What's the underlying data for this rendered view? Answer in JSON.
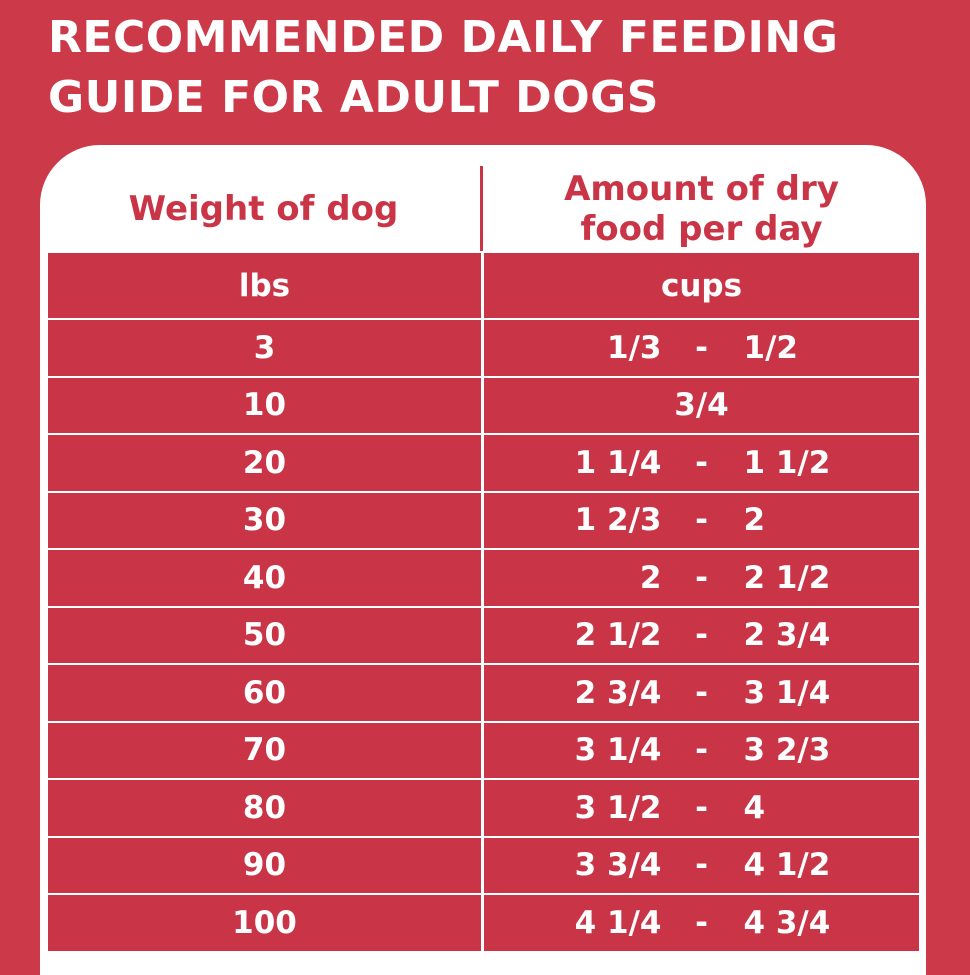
{
  "title": "RECOMMENDED DAILY FEEDING GUIDE FOR ADULT DOGS",
  "colors": {
    "background": "#cc3a4a",
    "table_red": "#c93547",
    "card": "#ffffff"
  },
  "table": {
    "headers": {
      "weight": "Weight of dog",
      "amount": "Amount of dry food per day"
    },
    "units": {
      "weight": "lbs",
      "amount": "cups"
    },
    "rows": [
      {
        "weight": "3",
        "low": "1/3",
        "dash": "-",
        "high": "1/2"
      },
      {
        "weight": "10",
        "single": "3/4"
      },
      {
        "weight": "20",
        "low": "1 1/4",
        "dash": "-",
        "high": "1 1/2"
      },
      {
        "weight": "30",
        "low": "1 2/3",
        "dash": "-",
        "high": "2"
      },
      {
        "weight": "40",
        "low": "2",
        "dash": "-",
        "high": "2 1/2"
      },
      {
        "weight": "50",
        "low": "2 1/2",
        "dash": "-",
        "high": "2 3/4"
      },
      {
        "weight": "60",
        "low": "2 3/4",
        "dash": "-",
        "high": "3 1/4"
      },
      {
        "weight": "70",
        "low": "3 1/4",
        "dash": "-",
        "high": "3 2/3"
      },
      {
        "weight": "80",
        "low": "3 1/2",
        "dash": "-",
        "high": "4"
      },
      {
        "weight": "90",
        "low": "3 3/4",
        "dash": "-",
        "high": "4 1/2"
      },
      {
        "weight": "100",
        "low": "4 1/4",
        "dash": "-",
        "high": "4 3/4"
      }
    ]
  }
}
